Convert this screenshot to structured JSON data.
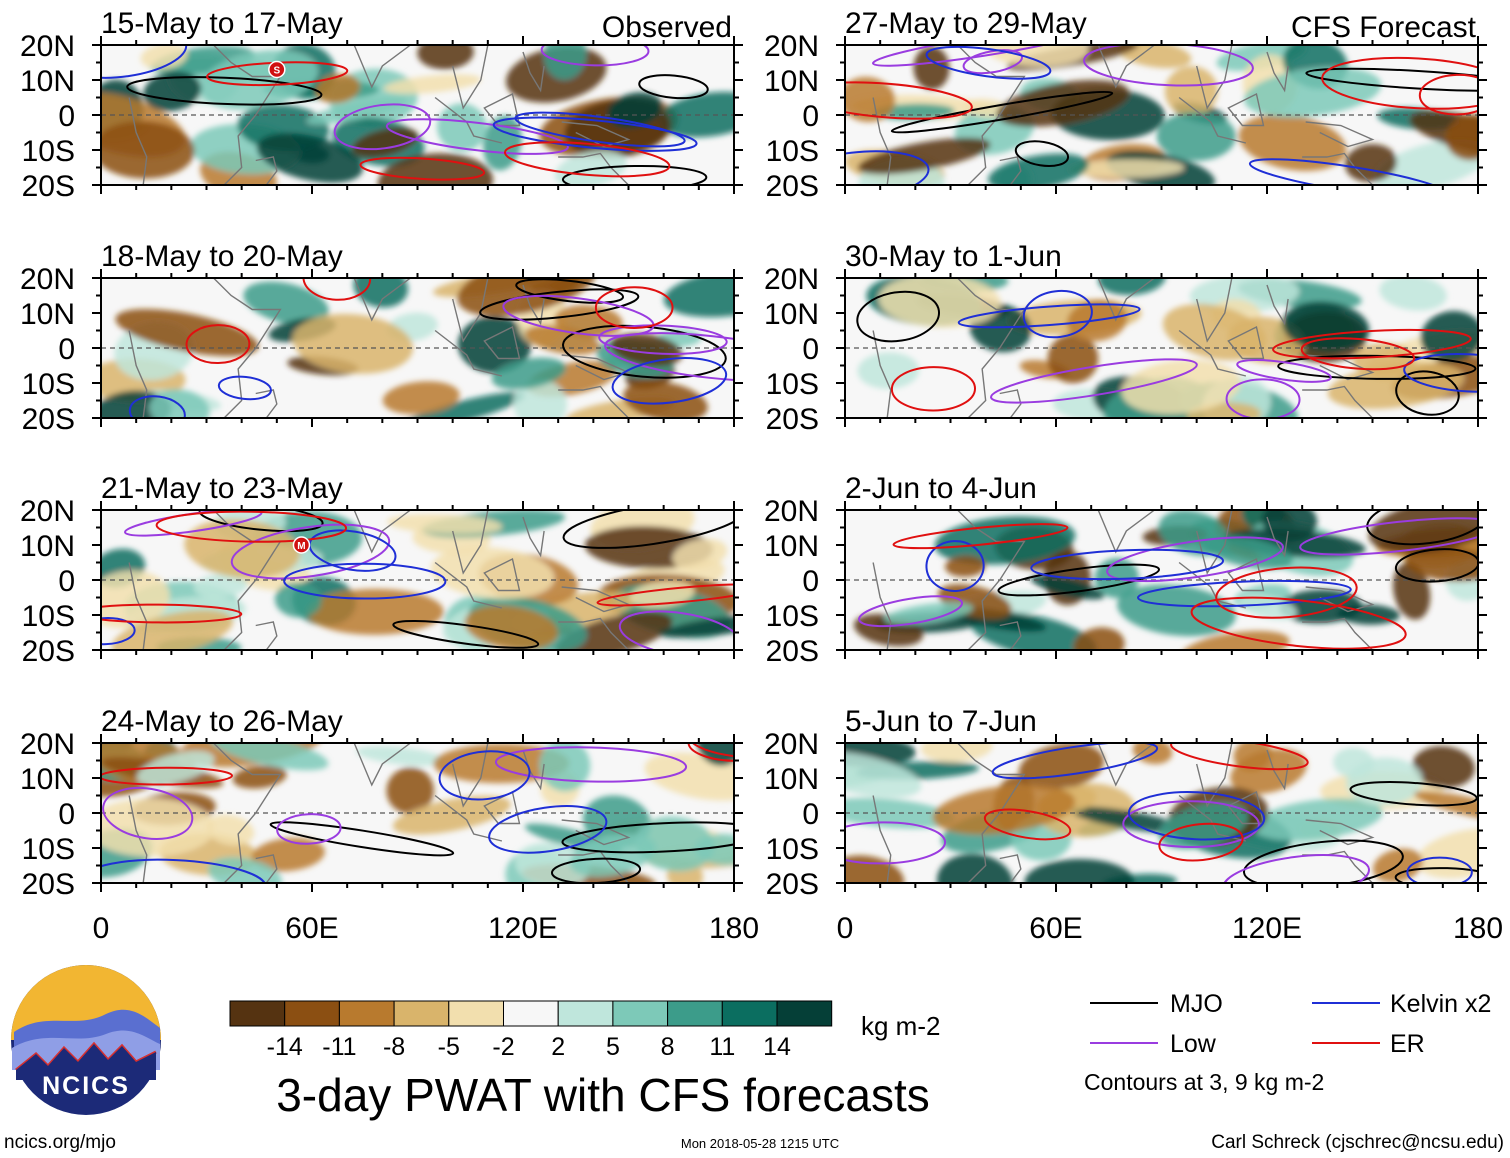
{
  "chart_data": [
    {
      "type": "heatmap",
      "title": "3-day PWAT with CFS forecasts",
      "x_range": [
        0,
        180
      ],
      "y_range": [
        -20,
        20
      ],
      "x_tick_labels": [
        "0",
        "60E",
        "120E",
        "180"
      ],
      "y_tick_labels": [
        "20N",
        "10N",
        "0",
        "10S",
        "20S"
      ],
      "colorbar": {
        "unit": "kg m-2",
        "levels": [
          "-14",
          "-11",
          "-8",
          "-5",
          "-2",
          "2",
          "5",
          "8",
          "11",
          "14"
        ],
        "colors": [
          "#553311",
          "#8b4f12",
          "#b87a2e",
          "#d9b46b",
          "#f2dfae",
          "#f7f7f7",
          "#bfe6dc",
          "#7dc9b8",
          "#3c9c8a",
          "#0b6e60",
          "#053f37"
        ]
      },
      "legend": {
        "items": [
          {
            "label": "MJO",
            "color": "#000000"
          },
          {
            "label": "Kelvin x2",
            "color": "#1f2fd6"
          },
          {
            "label": "Low",
            "color": "#9a3ce0"
          },
          {
            "label": "ER",
            "color": "#e01010"
          }
        ],
        "note": "Contours at 3, 9 kg m-2"
      },
      "panels": [
        {
          "period": "15-May to 17-May",
          "source": "Observed",
          "tag": "Observed"
        },
        {
          "period": "18-May to 20-May",
          "source": "Observed",
          "tag": ""
        },
        {
          "period": "21-May to 23-May",
          "source": "Observed",
          "tag": ""
        },
        {
          "period": "24-May to 26-May",
          "source": "Observed",
          "tag": ""
        },
        {
          "period": "27-May to 29-May",
          "source": "CFS Forecast",
          "tag": "CFS Forecast"
        },
        {
          "period": "30-May to 1-Jun",
          "source": "CFS Forecast",
          "tag": ""
        },
        {
          "period": "2-Jun to 4-Jun",
          "source": "CFS Forecast",
          "tag": ""
        },
        {
          "period": "5-Jun to 7-Jun",
          "source": "CFS Forecast",
          "tag": ""
        }
      ],
      "storm_markers": [
        {
          "panel": 0,
          "letter": "S",
          "lon": 50,
          "lat": 13
        },
        {
          "panel": 2,
          "letter": "M",
          "lon": 57,
          "lat": 10
        }
      ]
    }
  ],
  "logo": {
    "text": "NCICS"
  },
  "footer": {
    "site": "ncics.org/mjo",
    "timestamp": "Mon 2018-05-28 1215 UTC",
    "credit": "Carl Schreck (cjschrec@ncsu.edu)"
  }
}
